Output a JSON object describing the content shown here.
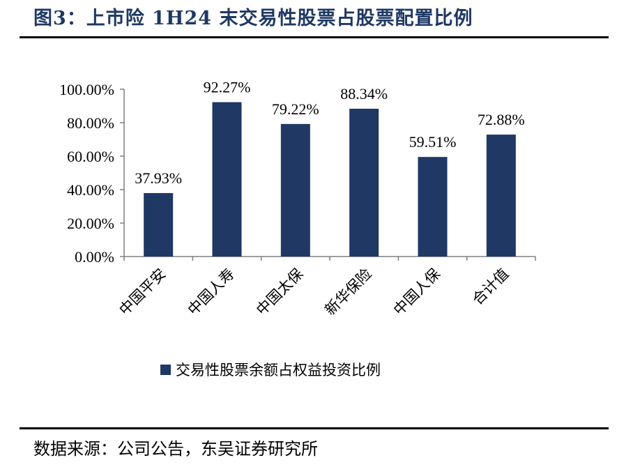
{
  "figure": {
    "title": "图3：上市险 1H24 末交易性股票占股票配置比例",
    "source": "数据来源：公司公告，东吴证券研究所"
  },
  "chart_data": {
    "type": "bar",
    "categories": [
      "中国平安",
      "中国人寿",
      "中国太保",
      "新华保险",
      "中国人保",
      "合计值"
    ],
    "series": [
      {
        "name": "交易性股票余额占权益投资比例",
        "values": [
          37.93,
          92.27,
          79.22,
          88.34,
          59.51,
          72.88
        ],
        "value_labels": [
          "37.93%",
          "92.27%",
          "79.22%",
          "88.34%",
          "59.51%",
          "72.88%"
        ],
        "color": "#1f3864"
      }
    ],
    "ylim": [
      0,
      100
    ],
    "y_ticks": [
      0,
      20,
      40,
      60,
      80,
      100
    ],
    "y_tick_labels": [
      "0.00%",
      "20.00%",
      "40.00%",
      "60.00%",
      "80.00%",
      "100.00%"
    ],
    "xlabel": "",
    "ylabel": "",
    "grid": false,
    "legend_position": "bottom",
    "x_tick_rotation": "-45 degrees"
  }
}
